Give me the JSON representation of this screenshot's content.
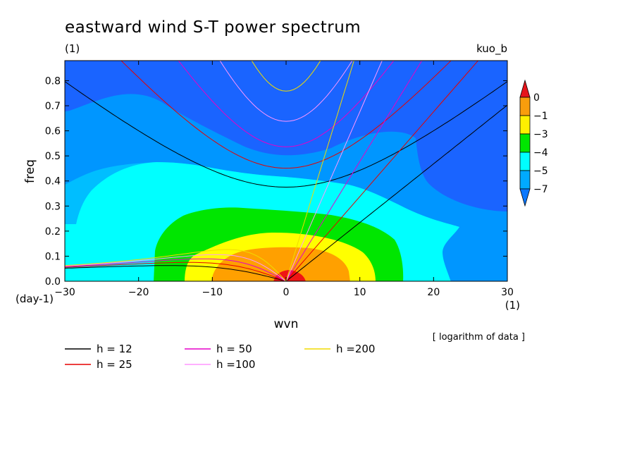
{
  "chart_data": {
    "type": "heatmap",
    "title": "eastward wind S-T power spectrum",
    "subtitle_left": "(1)",
    "subtitle_right": "kuo_b",
    "xlabel": "wvn",
    "ylabel": "freq",
    "x_unit": "(1)",
    "y_unit": "(day-1)",
    "xlim": [
      -30,
      30
    ],
    "ylim": [
      0,
      0.88
    ],
    "x_ticks": [
      -30,
      -20,
      -10,
      0,
      10,
      20,
      30
    ],
    "y_ticks": [
      0.0,
      0.1,
      0.2,
      0.3,
      0.4,
      0.5,
      0.6,
      0.7,
      0.8
    ],
    "note": "[ logarithm of data ]",
    "colorbar": {
      "labels": [
        "0",
        "−1",
        "−3",
        "−4",
        "−5",
        "−7"
      ],
      "colors": [
        "#e6151b",
        "#f99d0c",
        "#fff000",
        "#00e600",
        "#00ffff",
        "#00aaff",
        "#0a78ff"
      ]
    },
    "contour_levels": [
      {
        "level": "< -7",
        "color": "#1a64ff"
      },
      {
        "level": "-7",
        "color": "#0096ff"
      },
      {
        "level": "-5",
        "color": "#00beff"
      },
      {
        "level": "-4",
        "color": "#00ffff"
      },
      {
        "level": "-3",
        "color": "#00e600"
      },
      {
        "level": "-1",
        "color": "#ffff00"
      },
      {
        "level": "0",
        "color": "#ffa000"
      },
      {
        "level": "> 0",
        "color": "#f01414"
      }
    ],
    "dispersion_curves": [
      {
        "label": "h = 12",
        "h": 12,
        "color": "#000000"
      },
      {
        "label": "h = 25",
        "h": 25,
        "color": "#e60000"
      },
      {
        "label": "h = 50",
        "h": 50,
        "color": "#e600c8"
      },
      {
        "label": "h =100",
        "h": 100,
        "color": "#ff96ff"
      },
      {
        "label": "h =200",
        "h": 200,
        "color": "#f0dc00"
      }
    ]
  }
}
